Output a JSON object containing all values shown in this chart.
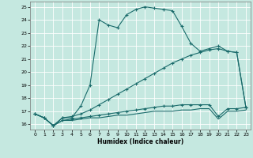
{
  "xlabel": "Humidex (Indice chaleur)",
  "bg_color": "#c5e8e0",
  "grid_color": "#ffffff",
  "line_color": "#1a6b6b",
  "xlim": [
    -0.5,
    23.5
  ],
  "ylim": [
    15.6,
    25.4
  ],
  "yticks": [
    16,
    17,
    18,
    19,
    20,
    21,
    22,
    23,
    24,
    25
  ],
  "xticks": [
    0,
    1,
    2,
    3,
    4,
    5,
    6,
    7,
    8,
    9,
    10,
    11,
    12,
    13,
    14,
    15,
    16,
    17,
    18,
    19,
    20,
    21,
    22,
    23
  ],
  "series": [
    {
      "x": [
        0,
        1,
        2,
        3,
        4,
        5,
        6,
        7,
        8,
        9,
        10,
        11,
        12,
        13,
        14,
        15,
        16,
        17,
        18,
        19,
        20,
        21,
        22,
        23
      ],
      "y": [
        16.8,
        16.5,
        15.9,
        16.5,
        16.5,
        17.4,
        19.0,
        24.0,
        23.6,
        23.4,
        24.4,
        24.8,
        25.0,
        24.9,
        24.8,
        24.7,
        23.5,
        22.2,
        21.6,
        21.8,
        22.0,
        21.6,
        21.5,
        17.3
      ],
      "marker": true
    },
    {
      "x": [
        0,
        1,
        2,
        3,
        4,
        5,
        6,
        7,
        8,
        9,
        10,
        11,
        12,
        13,
        14,
        15,
        16,
        17,
        18,
        19,
        20,
        21,
        22,
        23
      ],
      "y": [
        16.8,
        16.5,
        15.9,
        16.5,
        16.6,
        16.8,
        17.1,
        17.5,
        17.9,
        18.3,
        18.7,
        19.1,
        19.5,
        19.9,
        20.3,
        20.7,
        21.0,
        21.3,
        21.5,
        21.7,
        21.8,
        21.6,
        21.5,
        17.3
      ],
      "marker": true
    },
    {
      "x": [
        0,
        1,
        2,
        3,
        4,
        5,
        6,
        7,
        8,
        9,
        10,
        11,
        12,
        13,
        14,
        15,
        16,
        17,
        18,
        19,
        20,
        21,
        22,
        23
      ],
      "y": [
        16.8,
        16.5,
        15.9,
        16.3,
        16.4,
        16.5,
        16.6,
        16.7,
        16.8,
        16.9,
        17.0,
        17.1,
        17.2,
        17.3,
        17.4,
        17.4,
        17.5,
        17.5,
        17.5,
        17.5,
        16.6,
        17.2,
        17.2,
        17.3
      ],
      "marker": true
    },
    {
      "x": [
        0,
        1,
        2,
        3,
        4,
        5,
        6,
        7,
        8,
        9,
        10,
        11,
        12,
        13,
        14,
        15,
        16,
        17,
        18,
        19,
        20,
        21,
        22,
        23
      ],
      "y": [
        16.8,
        16.5,
        15.9,
        16.3,
        16.3,
        16.4,
        16.5,
        16.5,
        16.6,
        16.7,
        16.7,
        16.8,
        16.9,
        17.0,
        17.0,
        17.0,
        17.1,
        17.1,
        17.2,
        17.2,
        16.4,
        17.0,
        17.0,
        17.1
      ],
      "marker": false
    }
  ]
}
